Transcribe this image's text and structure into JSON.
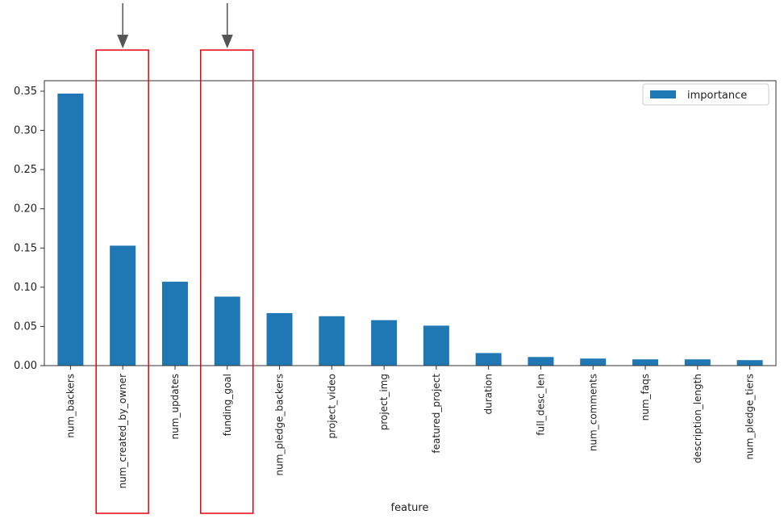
{
  "chart_data": {
    "type": "bar",
    "title": "",
    "xlabel": "feature",
    "ylabel": "",
    "ylim": [
      0,
      0.36
    ],
    "yticks": [
      "0.00",
      "0.05",
      "0.10",
      "0.15",
      "0.20",
      "0.25",
      "0.30",
      "0.35"
    ],
    "legend": {
      "position": "top-right",
      "entries": [
        "importance"
      ]
    },
    "grid": false,
    "categories": [
      "num_backers",
      "num_created_by_owner",
      "num_updates",
      "funding_goal",
      "num_pledge_backers",
      "project_video",
      "project_img",
      "featured_project",
      "duration",
      "full_desc_len",
      "num_comments",
      "num_faqs",
      "description_length",
      "num_pledge_tiers"
    ],
    "series": [
      {
        "name": "importance",
        "color": "#1f77b4",
        "values": [
          0.347,
          0.153,
          0.107,
          0.088,
          0.067,
          0.063,
          0.058,
          0.051,
          0.016,
          0.011,
          0.009,
          0.008,
          0.008,
          0.007
        ]
      }
    ],
    "annotations": {
      "highlighted": [
        "num_created_by_owner",
        "funding_goal"
      ],
      "highlight_color": "#e8000b",
      "arrow_color": "#555555"
    }
  }
}
